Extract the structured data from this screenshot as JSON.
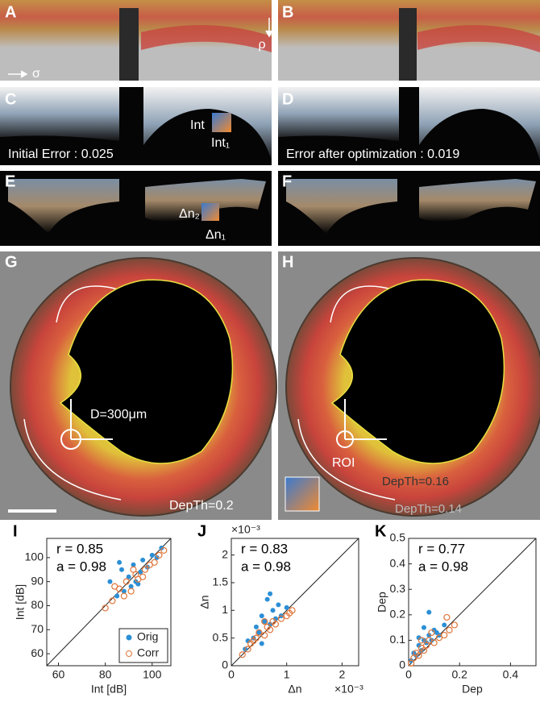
{
  "panels": {
    "letters": [
      "A",
      "B",
      "C",
      "D",
      "E",
      "F",
      "G",
      "H"
    ],
    "rho": "ρ",
    "sigma": "σ",
    "c_colorbar_top": "Int",
    "c_colorbar_right": "Int₁",
    "initial_error": "Initial Error : 0.025",
    "final_error": "Error after optimization : 0.019",
    "e_colorbar_top": "Δn₂",
    "e_colorbar_right": "Δn₁",
    "diameter": "D=300μm",
    "roi": "ROI",
    "g_threshold": "DepTh=0.2",
    "h_threshold_dark": "DepTh=0.16",
    "h_threshold": "DepTh=0.14"
  },
  "chart_data": [
    {
      "type": "scatter",
      "panel_label": "I",
      "xlabel": "Int [dB]",
      "ylabel": "Int [dB]",
      "annotations": [
        "r = 0.85",
        "a = 0.98"
      ],
      "legend": "lower right",
      "xlim": [
        55,
        108
      ],
      "ylim": [
        55,
        108
      ],
      "xticks": [
        60,
        80,
        100
      ],
      "yticks": [
        60,
        70,
        80,
        90,
        100
      ],
      "series": [
        {
          "name": "Orig",
          "color": "#2b8fd6",
          "marker": "filled",
          "x": [
            82,
            85,
            87,
            88,
            90,
            91,
            92,
            93,
            95,
            96,
            98,
            100,
            102,
            104,
            86,
            94
          ],
          "values": [
            90,
            84,
            95,
            86,
            92,
            88,
            97,
            90,
            94,
            99,
            96,
            101,
            100,
            104,
            98,
            89
          ]
        },
        {
          "name": "Corr",
          "color": "#e0763a",
          "marker": "open",
          "x": [
            80,
            83,
            86,
            88,
            89,
            91,
            93,
            94,
            96,
            97,
            99,
            101,
            103,
            105,
            84,
            92
          ],
          "values": [
            79,
            82,
            87,
            84,
            90,
            86,
            93,
            91,
            92,
            95,
            97,
            98,
            101,
            103,
            88,
            95
          ]
        }
      ]
    },
    {
      "type": "scatter",
      "panel_label": "J",
      "xlabel": "Δn",
      "ylabel": "Δn",
      "annotations": [
        "r = 0.83",
        "a = 0.98"
      ],
      "x_exponent_label": "×10⁻³",
      "y_exponent_label": "×10⁻³",
      "xlim": [
        0,
        2.3
      ],
      "ylim": [
        0,
        2.3
      ],
      "xticks": [
        0,
        1,
        2
      ],
      "yticks": [
        0,
        0.5,
        1,
        1.5,
        2
      ],
      "series": [
        {
          "name": "Orig",
          "color": "#2b8fd6",
          "marker": "filled",
          "x": [
            0.25,
            0.3,
            0.4,
            0.45,
            0.5,
            0.55,
            0.6,
            0.65,
            0.7,
            0.75,
            0.8,
            0.85,
            0.9,
            1.0,
            0.55,
            0.7
          ],
          "values": [
            0.3,
            0.45,
            0.5,
            0.7,
            0.6,
            0.9,
            0.8,
            1.2,
            0.75,
            1.0,
            0.85,
            1.1,
            0.9,
            1.05,
            0.4,
            1.3
          ]
        },
        {
          "name": "Corr",
          "color": "#e0763a",
          "marker": "open",
          "x": [
            0.2,
            0.3,
            0.35,
            0.45,
            0.5,
            0.6,
            0.65,
            0.7,
            0.75,
            0.8,
            0.9,
            1.0,
            1.05,
            1.1,
            0.4,
            0.6
          ],
          "values": [
            0.2,
            0.3,
            0.4,
            0.5,
            0.6,
            0.55,
            0.7,
            0.65,
            0.8,
            0.75,
            0.85,
            0.9,
            0.95,
            1.0,
            0.45,
            0.8
          ]
        }
      ]
    },
    {
      "type": "scatter",
      "panel_label": "K",
      "xlabel": "Dep",
      "ylabel": "Dep",
      "annotations": [
        "r = 0.77",
        "a = 0.98"
      ],
      "xlim": [
        0,
        0.5
      ],
      "ylim": [
        0,
        0.5
      ],
      "xticks": [
        0,
        0.2,
        0.4
      ],
      "yticks": [
        0,
        0.1,
        0.2,
        0.3,
        0.4,
        0.5
      ],
      "series": [
        {
          "name": "Orig",
          "color": "#2b8fd6",
          "marker": "filled",
          "x": [
            0.01,
            0.02,
            0.03,
            0.04,
            0.05,
            0.06,
            0.07,
            0.08,
            0.09,
            0.1,
            0.12,
            0.14,
            0.08,
            0.06,
            0.11,
            0.04
          ],
          "values": [
            0.02,
            0.05,
            0.04,
            0.08,
            0.06,
            0.1,
            0.09,
            0.12,
            0.1,
            0.14,
            0.12,
            0.16,
            0.21,
            0.15,
            0.13,
            0.11
          ]
        },
        {
          "name": "Corr",
          "color": "#e0763a",
          "marker": "open",
          "x": [
            0.01,
            0.02,
            0.03,
            0.04,
            0.05,
            0.06,
            0.07,
            0.08,
            0.1,
            0.12,
            0.14,
            0.16,
            0.18,
            0.15,
            0.09,
            0.05
          ],
          "values": [
            0.01,
            0.03,
            0.05,
            0.04,
            0.07,
            0.06,
            0.08,
            0.1,
            0.09,
            0.11,
            0.12,
            0.14,
            0.16,
            0.19,
            0.13,
            0.1
          ]
        }
      ]
    }
  ]
}
